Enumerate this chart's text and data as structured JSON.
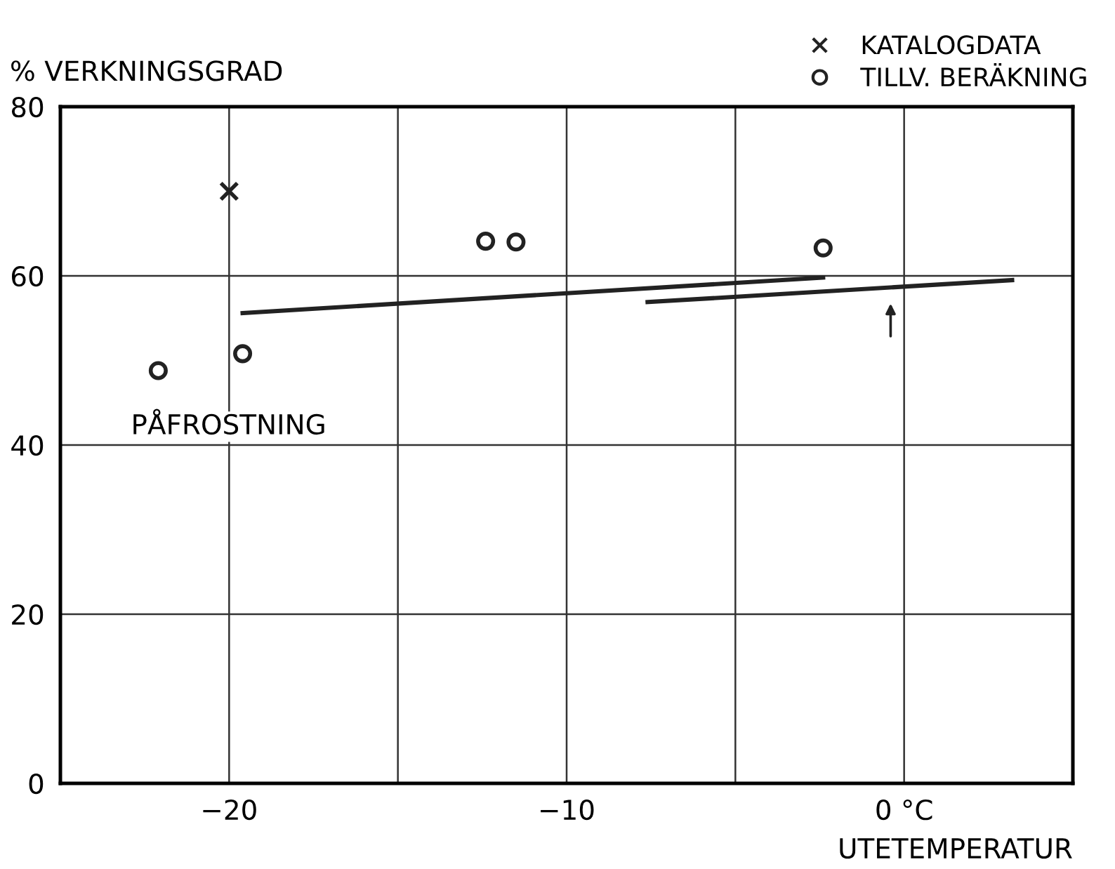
{
  "chart_data": {
    "type": "scatter",
    "ylabel": "% VERKNINGSGRAD",
    "xlabel": "UTETEMPERATUR",
    "xlim": [
      -25,
      5
    ],
    "ylim": [
      0,
      80
    ],
    "xticks": [
      {
        "value": -25,
        "label": null
      },
      -20,
      {
        "value": -15,
        "label": null
      },
      -10,
      {
        "value": -5,
        "label": null
      },
      {
        "value": 0,
        "label": "0 °C"
      },
      {
        "value": 5,
        "label": null
      }
    ],
    "yticks": [
      0,
      20,
      40,
      60,
      80
    ],
    "grid": true,
    "legend": "top right",
    "series": [
      {
        "name": "KATALOGDATA",
        "marker": "cross",
        "color": "#222222",
        "x": [
          -20
        ],
        "values": [
          70
        ]
      },
      {
        "name": "TILLV. BERÄKNING",
        "marker": "circle",
        "color": "#222222",
        "x": [
          -22.1,
          -19.6,
          -12.4,
          -11.5,
          -2.4
        ],
        "values": [
          48.8,
          50.8,
          64.1,
          64,
          63.3
        ]
      },
      {
        "type": "line",
        "color": "#222222",
        "x": [
          -19.6,
          -2.4
        ],
        "values": [
          55.6,
          59.8
        ]
      },
      {
        "type": "line",
        "color": "#222222",
        "x": [
          -7.6,
          3.2
        ],
        "values": [
          56.9,
          59.5
        ]
      }
    ],
    "annotations": [
      {
        "text": "PÅFROSTNING",
        "x": -22.1,
        "y": 48.8
      }
    ]
  }
}
